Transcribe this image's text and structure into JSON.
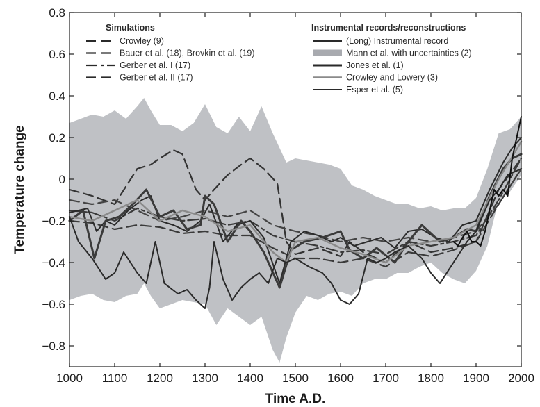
{
  "chart_data": {
    "type": "line",
    "title": "",
    "xlabel": "Time A.D.",
    "ylabel": "Temperature change",
    "xlim": [
      1000,
      2000
    ],
    "ylim": [
      -0.9,
      0.8
    ],
    "xticks": [
      1000,
      1100,
      1200,
      1300,
      1400,
      1500,
      1600,
      1700,
      1800,
      1900,
      2000
    ],
    "yticks": [
      0.8,
      0.6,
      0.4,
      0.2,
      0,
      -0.2,
      -0.4,
      -0.6,
      -0.8
    ],
    "ytick_labels": [
      "0.8",
      "0.6",
      "0.4",
      "0.2",
      "0",
      "−0.2",
      "−0.4",
      "−0.6",
      "−0.8"
    ],
    "grid": false,
    "legend_groups": [
      {
        "title": "Simulations",
        "entries": [
          {
            "label": "Crowley (9)",
            "style": "dashed"
          },
          {
            "label": "Bauer et al. (18), Brovkin et al. (19)",
            "style": "dashed"
          },
          {
            "label": "Gerber et al. I (17)",
            "style": "dashdot"
          },
          {
            "label": "Gerber et al. II (17)",
            "style": "dashed"
          }
        ]
      },
      {
        "title": "Instrumental records/reconstructions",
        "entries": [
          {
            "label": "(Long) Instrumental record",
            "style": "solid"
          },
          {
            "label": "Mann et al. with uncertainties (2)",
            "style": "band"
          },
          {
            "label": "Jones et al. (1)",
            "style": "solid-thick"
          },
          {
            "label": "Crowley and Lowery (3)",
            "style": "solid-light"
          },
          {
            "label": "Esper et al. (5)",
            "style": "solid"
          }
        ]
      }
    ],
    "uncertainty_band": {
      "name": "Mann et al. with uncertainties (2)",
      "x": [
        1000,
        1025,
        1050,
        1075,
        1100,
        1125,
        1150,
        1165,
        1180,
        1200,
        1225,
        1250,
        1275,
        1300,
        1325,
        1350,
        1375,
        1400,
        1425,
        1450,
        1465,
        1480,
        1500,
        1525,
        1550,
        1575,
        1600,
        1625,
        1650,
        1675,
        1700,
        1725,
        1750,
        1775,
        1800,
        1825,
        1850,
        1875,
        1900,
        1925,
        1950,
        1975,
        2000
      ],
      "upper": [
        0.27,
        0.29,
        0.31,
        0.3,
        0.33,
        0.29,
        0.35,
        0.39,
        0.33,
        0.26,
        0.26,
        0.23,
        0.27,
        0.36,
        0.25,
        0.22,
        0.3,
        0.23,
        0.35,
        0.22,
        0.15,
        0.08,
        0.1,
        0.09,
        0.08,
        0.07,
        0.05,
        -0.03,
        -0.05,
        -0.08,
        -0.1,
        -0.12,
        -0.12,
        -0.14,
        -0.13,
        -0.15,
        -0.14,
        -0.14,
        -0.09,
        0.05,
        0.22,
        0.24,
        0.3
      ],
      "lower": [
        -0.58,
        -0.56,
        -0.55,
        -0.58,
        -0.59,
        -0.56,
        -0.55,
        -0.5,
        -0.56,
        -0.62,
        -0.6,
        -0.58,
        -0.59,
        -0.6,
        -0.7,
        -0.62,
        -0.66,
        -0.7,
        -0.66,
        -0.82,
        -0.88,
        -0.76,
        -0.64,
        -0.56,
        -0.58,
        -0.55,
        -0.54,
        -0.56,
        -0.5,
        -0.48,
        -0.48,
        -0.45,
        -0.45,
        -0.42,
        -0.4,
        -0.45,
        -0.48,
        -0.5,
        -0.44,
        -0.32,
        -0.1,
        -0.06,
        0.02
      ]
    },
    "series": [
      {
        "name": "Crowley (9)",
        "style": "dashed",
        "color": "#333333",
        "x": [
          1000,
          1050,
          1100,
          1150,
          1180,
          1200,
          1230,
          1250,
          1280,
          1300,
          1320,
          1350,
          1380,
          1400,
          1430,
          1460,
          1480,
          1500,
          1550,
          1600,
          1620,
          1650,
          1700,
          1750,
          1800,
          1850,
          1900,
          1950,
          2000
        ],
        "values": [
          -0.05,
          -0.08,
          -0.12,
          0.05,
          0.07,
          0.1,
          0.14,
          0.12,
          -0.05,
          -0.1,
          -0.05,
          0.02,
          0.07,
          0.1,
          0.05,
          -0.02,
          -0.3,
          -0.36,
          -0.33,
          -0.37,
          -0.3,
          -0.35,
          -0.4,
          -0.3,
          -0.35,
          -0.33,
          -0.3,
          -0.05,
          0.1
        ]
      },
      {
        "name": "Bauer et al. (18), Brovkin et al. (19)",
        "style": "dashed",
        "color": "#444444",
        "x": [
          1000,
          1050,
          1100,
          1150,
          1200,
          1250,
          1300,
          1350,
          1400,
          1450,
          1500,
          1550,
          1600,
          1650,
          1700,
          1750,
          1800,
          1850,
          1900,
          1950,
          2000
        ],
        "values": [
          -0.1,
          -0.12,
          -0.1,
          -0.15,
          -0.2,
          -0.18,
          -0.15,
          -0.18,
          -0.15,
          -0.22,
          -0.25,
          -0.27,
          -0.3,
          -0.28,
          -0.3,
          -0.28,
          -0.3,
          -0.28,
          -0.25,
          -0.12,
          0.05
        ]
      },
      {
        "name": "Gerber et al. I (17)",
        "style": "dashdot",
        "color": "#3a3a3a",
        "x": [
          1000,
          1050,
          1100,
          1150,
          1200,
          1250,
          1300,
          1350,
          1400,
          1450,
          1500,
          1550,
          1600,
          1650,
          1700,
          1750,
          1800,
          1850,
          1900,
          1950,
          2000
        ],
        "values": [
          -0.15,
          -0.16,
          -0.2,
          -0.14,
          -0.18,
          -0.2,
          -0.19,
          -0.22,
          -0.2,
          -0.27,
          -0.3,
          -0.32,
          -0.35,
          -0.34,
          -0.36,
          -0.3,
          -0.32,
          -0.3,
          -0.27,
          -0.1,
          0.1
        ]
      },
      {
        "name": "Gerber et al. II (17)",
        "style": "dashed",
        "color": "#3a3a3a",
        "x": [
          1000,
          1050,
          1100,
          1150,
          1200,
          1250,
          1300,
          1350,
          1400,
          1450,
          1500,
          1550,
          1600,
          1650,
          1700,
          1750,
          1800,
          1850,
          1900,
          1950,
          2000
        ],
        "values": [
          -0.2,
          -0.21,
          -0.24,
          -0.22,
          -0.23,
          -0.26,
          -0.25,
          -0.27,
          -0.27,
          -0.33,
          -0.38,
          -0.38,
          -0.4,
          -0.38,
          -0.42,
          -0.35,
          -0.37,
          -0.34,
          -0.3,
          -0.12,
          0.05
        ]
      },
      {
        "name": "Mann et al. with uncertainties (2)",
        "style": "solid",
        "color": "#2b2b2b",
        "x": [
          1000,
          1040,
          1060,
          1080,
          1100,
          1130,
          1160,
          1180,
          1200,
          1230,
          1260,
          1290,
          1310,
          1340,
          1370,
          1400,
          1430,
          1465,
          1490,
          1520,
          1550,
          1580,
          1600,
          1630,
          1660,
          1690,
          1720,
          1750,
          1780,
          1810,
          1840,
          1870,
          1900,
          1930,
          1960,
          1980,
          2000
        ],
        "values": [
          -0.16,
          -0.14,
          -0.25,
          -0.2,
          -0.22,
          -0.15,
          -0.1,
          -0.08,
          -0.2,
          -0.22,
          -0.25,
          -0.2,
          -0.12,
          -0.3,
          -0.22,
          -0.2,
          -0.28,
          -0.5,
          -0.3,
          -0.25,
          -0.27,
          -0.3,
          -0.28,
          -0.32,
          -0.3,
          -0.28,
          -0.33,
          -0.25,
          -0.24,
          -0.28,
          -0.3,
          -0.22,
          -0.2,
          -0.05,
          0.08,
          0.15,
          0.2
        ]
      },
      {
        "name": "Jones et al. (1)",
        "style": "solid-thick",
        "color": "#3b3b3b",
        "x": [
          1000,
          1030,
          1055,
          1080,
          1110,
          1140,
          1170,
          1200,
          1230,
          1260,
          1290,
          1300,
          1320,
          1350,
          1380,
          1400,
          1430,
          1465,
          1490,
          1520,
          1560,
          1600,
          1620,
          1650,
          1680,
          1720,
          1750,
          1780,
          1820,
          1850,
          1880,
          1900,
          1930,
          1960,
          1980,
          2000
        ],
        "values": [
          -0.2,
          -0.15,
          -0.38,
          -0.2,
          -0.18,
          -0.12,
          -0.05,
          -0.18,
          -0.15,
          -0.24,
          -0.22,
          -0.08,
          -0.12,
          -0.3,
          -0.2,
          -0.25,
          -0.35,
          -0.52,
          -0.34,
          -0.3,
          -0.28,
          -0.25,
          -0.34,
          -0.38,
          -0.33,
          -0.4,
          -0.3,
          -0.22,
          -0.3,
          -0.28,
          -0.24,
          -0.25,
          -0.08,
          0.05,
          0.1,
          0.12
        ]
      },
      {
        "name": "Crowley and Lowery (3)",
        "style": "solid-light",
        "color": "#7a7a7a",
        "x": [
          1000,
          1050,
          1100,
          1150,
          1200,
          1250,
          1300,
          1350,
          1400,
          1450,
          1480,
          1500,
          1550,
          1600,
          1650,
          1700,
          1750,
          1800,
          1850,
          1900,
          1950,
          2000
        ],
        "values": [
          -0.18,
          -0.2,
          -0.15,
          -0.1,
          -0.2,
          -0.15,
          -0.18,
          -0.25,
          -0.22,
          -0.35,
          -0.4,
          -0.3,
          -0.28,
          -0.33,
          -0.36,
          -0.4,
          -0.32,
          -0.3,
          -0.28,
          -0.22,
          0.0,
          0.18
        ]
      },
      {
        "name": "Esper et al. (5)",
        "style": "solid",
        "color": "#2a2a2a",
        "x": [
          1000,
          1020,
          1050,
          1080,
          1100,
          1120,
          1150,
          1170,
          1190,
          1210,
          1240,
          1260,
          1280,
          1300,
          1310,
          1320,
          1340,
          1360,
          1380,
          1400,
          1420,
          1440,
          1460,
          1480,
          1500,
          1530,
          1560,
          1580,
          1600,
          1620,
          1640,
          1660,
          1680,
          1700,
          1720,
          1750,
          1780,
          1800,
          1820,
          1850,
          1880,
          1900,
          1930,
          1950,
          1970,
          2000
        ],
        "values": [
          -0.18,
          -0.3,
          -0.38,
          -0.48,
          -0.45,
          -0.35,
          -0.45,
          -0.5,
          -0.3,
          -0.5,
          -0.55,
          -0.53,
          -0.58,
          -0.62,
          -0.52,
          -0.3,
          -0.48,
          -0.58,
          -0.52,
          -0.48,
          -0.45,
          -0.5,
          -0.38,
          -0.4,
          -0.38,
          -0.42,
          -0.45,
          -0.5,
          -0.58,
          -0.6,
          -0.55,
          -0.38,
          -0.4,
          -0.38,
          -0.35,
          -0.32,
          -0.38,
          -0.45,
          -0.5,
          -0.4,
          -0.3,
          -0.25,
          -0.1,
          -0.05,
          0.02,
          0.05
        ]
      },
      {
        "name": "(Long) Instrumental record",
        "style": "solid",
        "color": "#111111",
        "x": [
          1850,
          1860,
          1870,
          1880,
          1890,
          1900,
          1910,
          1920,
          1930,
          1940,
          1950,
          1960,
          1970,
          1980,
          1990,
          2000
        ],
        "values": [
          -0.3,
          -0.32,
          -0.28,
          -0.25,
          -0.3,
          -0.3,
          -0.32,
          -0.25,
          -0.15,
          -0.05,
          -0.08,
          -0.05,
          -0.08,
          0.1,
          0.2,
          0.3
        ]
      }
    ]
  }
}
